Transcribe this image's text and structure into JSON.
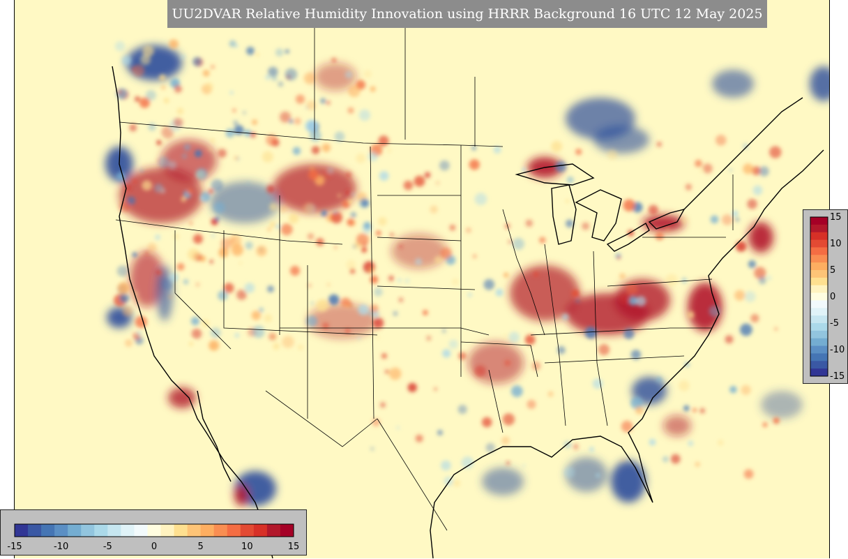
{
  "title": "UU2DVAR Relative Humidity Innovation using HRRR Background 16 UTC 12 May 2025",
  "map": {
    "variable": "Relative Humidity Innovation",
    "background_model": "HRRR",
    "region": "CONUS",
    "colormap": "RdYlBu_r (diverging red-yellow-blue)",
    "field_colors": {
      "neutral": "#fff9c4",
      "positive": "#b2182b",
      "negative": "#2c4e9c"
    }
  },
  "colorbar_horizontal": {
    "ticks": [
      "-15",
      "-10",
      "-5",
      "0",
      "5",
      "10",
      "15"
    ],
    "range": [
      -15,
      15
    ],
    "colors": [
      "#313695",
      "#3a58a4",
      "#4575b4",
      "#5b8fc4",
      "#74add1",
      "#92c5de",
      "#abd9e9",
      "#c6e6f0",
      "#e0f3f8",
      "#f2fafc",
      "#fffde0",
      "#fff3c0",
      "#fee090",
      "#fdc477",
      "#fdae61",
      "#f98e52",
      "#f46d43",
      "#e34a33",
      "#d73027",
      "#b2182b",
      "#a50026"
    ]
  },
  "colorbar_vertical": {
    "ticks": [
      "15",
      "10",
      "5",
      "0",
      "-5",
      "-10",
      "-15"
    ],
    "range": [
      -15,
      15
    ]
  }
}
